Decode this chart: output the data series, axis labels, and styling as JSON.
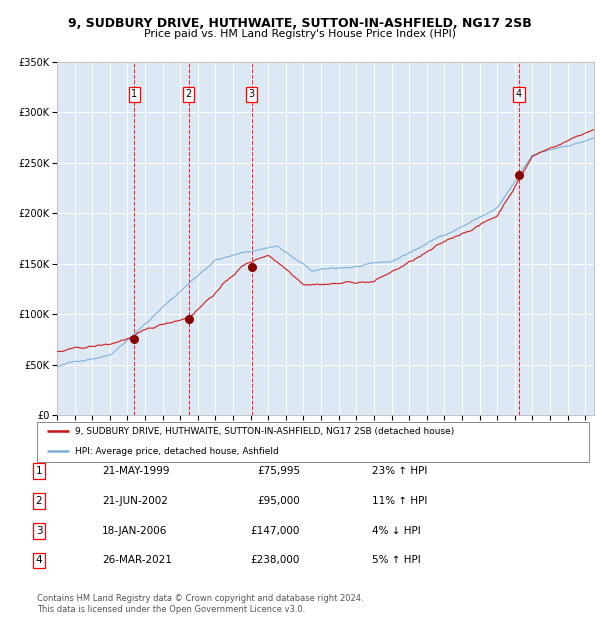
{
  "title": "9, SUDBURY DRIVE, HUTHWAITE, SUTTON-IN-ASHFIELD, NG17 2SB",
  "subtitle": "Price paid vs. HM Land Registry's House Price Index (HPI)",
  "bg_color": "#dce9f5",
  "hpi_color": "#7aaed6",
  "price_color": "#cc1111",
  "marker_color": "#880000",
  "xmin": 1995.0,
  "xmax": 2025.5,
  "ymin": 0,
  "ymax": 350000,
  "yticks": [
    0,
    50000,
    100000,
    150000,
    200000,
    250000,
    300000,
    350000
  ],
  "sales": [
    {
      "num": 1,
      "price": 75995,
      "year": 1999.39
    },
    {
      "num": 2,
      "price": 95000,
      "year": 2002.47
    },
    {
      "num": 3,
      "price": 147000,
      "year": 2006.05
    },
    {
      "num": 4,
      "price": 238000,
      "year": 2021.23
    }
  ],
  "table_rows": [
    {
      "num": 1,
      "date": "21-MAY-1999",
      "price": "£75,995",
      "hpi": "23% ↑ HPI"
    },
    {
      "num": 2,
      "date": "21-JUN-2002",
      "price": "£95,000",
      "hpi": "11% ↑ HPI"
    },
    {
      "num": 3,
      "date": "18-JAN-2006",
      "price": "£147,000",
      "hpi": "4% ↓ HPI"
    },
    {
      "num": 4,
      "date": "26-MAR-2021",
      "price": "£238,000",
      "hpi": "5% ↑ HPI"
    }
  ],
  "legend_line1": "9, SUDBURY DRIVE, HUTHWAITE, SUTTON-IN-ASHFIELD, NG17 2SB (detached house)",
  "legend_line2": "HPI: Average price, detached house, Ashfield",
  "footer": "Contains HM Land Registry data © Crown copyright and database right 2024.\nThis data is licensed under the Open Government Licence v3.0.",
  "seed": 42
}
